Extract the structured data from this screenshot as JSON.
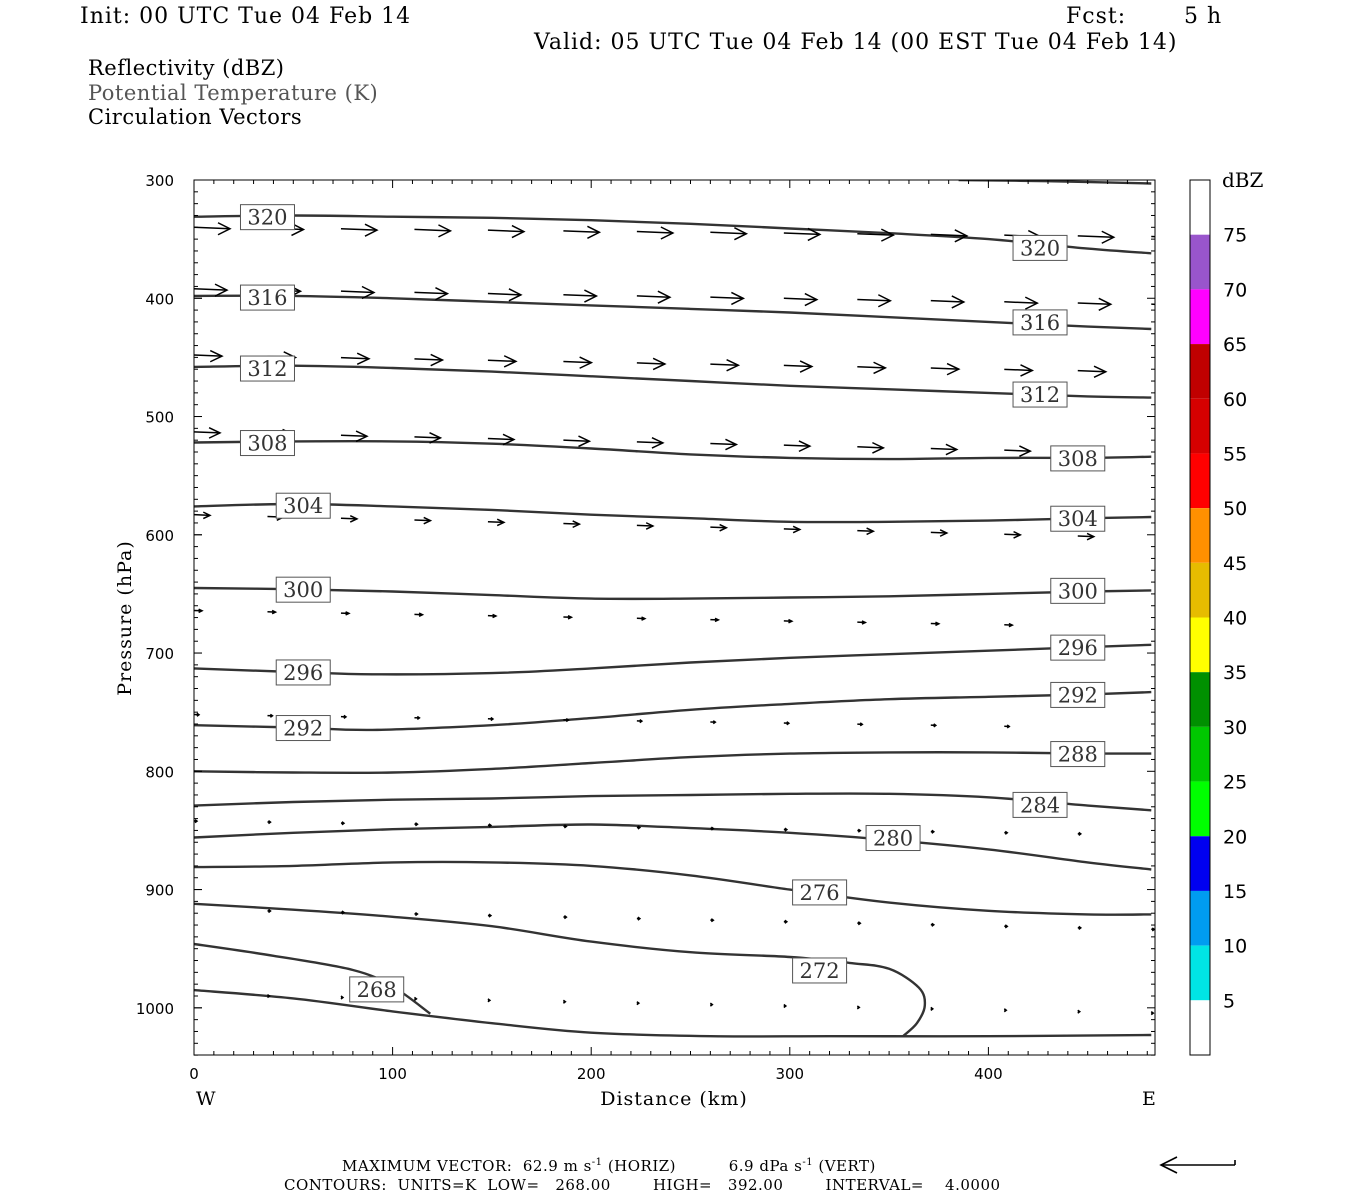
{
  "header": {
    "init": "Init: 00 UTC Tue 04 Feb 14",
    "fcst_label": "Fcst:",
    "fcst_value": "5 h",
    "valid": "Valid: 05 UTC Tue 04 Feb 14 (00 EST Tue 04 Feb 14)"
  },
  "fields": [
    "Reflectivity (dBZ)",
    "Potential Temperature (K)",
    "Circulation Vectors"
  ],
  "footer": {
    "max_vector_label": "MAXIMUM VECTOR:",
    "max_vector_horiz_value": "62.9",
    "max_vector_horiz_unit": "m s",
    "max_vector_horiz_exp": "-1",
    "max_vector_horiz_tag": "(HORIZ)",
    "max_vector_vert_value": "6.9",
    "max_vector_vert_unit": "dPa s",
    "max_vector_vert_exp": "-1",
    "max_vector_vert_tag": "(VERT)",
    "contours": "CONTOURS:  UNITS=K  LOW=   268.00        HIGH=   392.00        INTERVAL=    4.0000"
  },
  "chart_data": {
    "type": "cross-section",
    "xlabel": "Distance (km)",
    "ylabel": "Pressure (hPa)",
    "xlim": [
      0,
      482
    ],
    "ylim": [
      1040,
      300
    ],
    "x_ticks": [
      0,
      100,
      200,
      300,
      400
    ],
    "y_ticks": [
      300,
      400,
      500,
      600,
      700,
      800,
      900,
      1000
    ],
    "x_end_labels": {
      "left": "W",
      "right": "E"
    },
    "colorbar": {
      "title": "dBZ",
      "labels": [
        "5",
        "10",
        "15",
        "20",
        "25",
        "30",
        "35",
        "40",
        "45",
        "50",
        "55",
        "60",
        "65",
        "70",
        "75"
      ],
      "colors": [
        "#ffffff",
        "#00e4e4",
        "#009cf0",
        "#0000f0",
        "#00ff00",
        "#00c800",
        "#009000",
        "#ffff00",
        "#e6bc00",
        "#ff9000",
        "#ff0000",
        "#d60000",
        "#c00000",
        "#ff00ff",
        "#9955cc",
        "#ffffff"
      ]
    },
    "isentropes": [
      {
        "theta": 268,
        "points": [
          [
            0,
            985
          ],
          [
            50,
            992
          ],
          [
            100,
            1003
          ],
          [
            150,
            1013
          ],
          [
            200,
            1021
          ],
          [
            260,
            1024
          ],
          [
            320,
            1024
          ],
          [
            400,
            1024
          ],
          [
            482,
            1023
          ]
        ]
      },
      {
        "theta": 272,
        "points": [
          [
            0,
            946
          ],
          [
            40,
            956
          ],
          [
            80,
            968
          ],
          [
            100,
            982
          ],
          [
            119,
            1005
          ]
        ]
      },
      {
        "theta": 272,
        "points": [
          [
            0,
            912
          ],
          [
            50,
            917
          ],
          [
            100,
            923
          ],
          [
            150,
            931
          ],
          [
            200,
            944
          ],
          [
            250,
            953
          ],
          [
            300,
            957
          ],
          [
            330,
            962
          ],
          [
            350,
            967
          ],
          [
            365,
            983
          ],
          [
            368,
            998
          ],
          [
            364,
            1013
          ],
          [
            357,
            1024
          ]
        ]
      },
      {
        "theta": 276,
        "points": [
          [
            0,
            881
          ],
          [
            50,
            880
          ],
          [
            100,
            877
          ],
          [
            150,
            877
          ],
          [
            200,
            880
          ],
          [
            250,
            888
          ],
          [
            300,
            900
          ],
          [
            350,
            911
          ],
          [
            400,
            918
          ],
          [
            450,
            921
          ],
          [
            482,
            921
          ]
        ]
      },
      {
        "theta": 280,
        "points": [
          [
            0,
            856
          ],
          [
            50,
            852
          ],
          [
            100,
            849
          ],
          [
            150,
            847
          ],
          [
            200,
            845
          ],
          [
            250,
            848
          ],
          [
            300,
            852
          ],
          [
            350,
            858
          ],
          [
            400,
            866
          ],
          [
            450,
            877
          ],
          [
            482,
            883
          ]
        ]
      },
      {
        "theta": 284,
        "points": [
          [
            0,
            829
          ],
          [
            50,
            826
          ],
          [
            100,
            824
          ],
          [
            150,
            823
          ],
          [
            200,
            821
          ],
          [
            250,
            820
          ],
          [
            300,
            819
          ],
          [
            350,
            819
          ],
          [
            400,
            822
          ],
          [
            450,
            829
          ],
          [
            482,
            833
          ]
        ]
      },
      {
        "theta": 288,
        "points": [
          [
            0,
            800
          ],
          [
            50,
            801
          ],
          [
            100,
            801
          ],
          [
            150,
            798
          ],
          [
            200,
            793
          ],
          [
            250,
            788
          ],
          [
            300,
            785
          ],
          [
            350,
            784
          ],
          [
            400,
            784
          ],
          [
            450,
            785
          ],
          [
            482,
            785
          ]
        ]
      },
      {
        "theta": 292,
        "points": [
          [
            0,
            761
          ],
          [
            50,
            763
          ],
          [
            90,
            765
          ],
          [
            150,
            761
          ],
          [
            200,
            755
          ],
          [
            250,
            748
          ],
          [
            300,
            743
          ],
          [
            350,
            739
          ],
          [
            400,
            737
          ],
          [
            450,
            735
          ],
          [
            482,
            733
          ]
        ]
      },
      {
        "theta": 296,
        "points": [
          [
            0,
            713
          ],
          [
            50,
            716
          ],
          [
            90,
            718
          ],
          [
            150,
            717
          ],
          [
            200,
            713
          ],
          [
            250,
            708
          ],
          [
            300,
            704
          ],
          [
            350,
            701
          ],
          [
            400,
            698
          ],
          [
            450,
            695
          ],
          [
            482,
            693
          ]
        ]
      },
      {
        "theta": 300,
        "points": [
          [
            0,
            645
          ],
          [
            50,
            646
          ],
          [
            100,
            648
          ],
          [
            150,
            651
          ],
          [
            200,
            654
          ],
          [
            250,
            654
          ],
          [
            300,
            653
          ],
          [
            350,
            652
          ],
          [
            400,
            650
          ],
          [
            450,
            648
          ],
          [
            482,
            647
          ]
        ]
      },
      {
        "theta": 304,
        "points": [
          [
            0,
            576
          ],
          [
            50,
            574
          ],
          [
            100,
            576
          ],
          [
            150,
            579
          ],
          [
            200,
            583
          ],
          [
            250,
            586
          ],
          [
            300,
            589
          ],
          [
            350,
            589
          ],
          [
            400,
            588
          ],
          [
            450,
            586
          ],
          [
            482,
            585
          ]
        ]
      },
      {
        "theta": 308,
        "points": [
          [
            0,
            522
          ],
          [
            50,
            521
          ],
          [
            100,
            521
          ],
          [
            150,
            523
          ],
          [
            200,
            527
          ],
          [
            250,
            532
          ],
          [
            300,
            535
          ],
          [
            350,
            536
          ],
          [
            400,
            535
          ],
          [
            450,
            535
          ],
          [
            482,
            534
          ]
        ]
      },
      {
        "theta": 312,
        "points": [
          [
            0,
            458
          ],
          [
            50,
            457
          ],
          [
            100,
            459
          ],
          [
            150,
            462
          ],
          [
            200,
            466
          ],
          [
            250,
            470
          ],
          [
            300,
            474
          ],
          [
            350,
            477
          ],
          [
            400,
            480
          ],
          [
            450,
            483
          ],
          [
            482,
            484
          ]
        ]
      },
      {
        "theta": 316,
        "points": [
          [
            0,
            398
          ],
          [
            50,
            398
          ],
          [
            100,
            400
          ],
          [
            150,
            403
          ],
          [
            200,
            406
          ],
          [
            250,
            409
          ],
          [
            300,
            412
          ],
          [
            350,
            416
          ],
          [
            400,
            420
          ],
          [
            450,
            424
          ],
          [
            482,
            426
          ]
        ]
      },
      {
        "theta": 320,
        "points": [
          [
            0,
            331
          ],
          [
            50,
            330
          ],
          [
            100,
            331
          ],
          [
            150,
            332
          ],
          [
            200,
            334
          ],
          [
            250,
            337
          ],
          [
            300,
            341
          ],
          [
            350,
            345
          ],
          [
            400,
            350
          ],
          [
            450,
            358
          ],
          [
            482,
            362
          ]
        ]
      },
      {
        "theta": 324,
        "points": [
          [
            385,
            300
          ],
          [
            430,
            301
          ],
          [
            482,
            303
          ]
        ]
      }
    ],
    "contour_labels": [
      {
        "text": "320",
        "x": 37,
        "p": 331
      },
      {
        "text": "320",
        "x": 426,
        "p": 357
      },
      {
        "text": "316",
        "x": 37,
        "p": 399
      },
      {
        "text": "316",
        "x": 426,
        "p": 420
      },
      {
        "text": "312",
        "x": 37,
        "p": 459
      },
      {
        "text": "312",
        "x": 426,
        "p": 481
      },
      {
        "text": "308",
        "x": 37,
        "p": 522
      },
      {
        "text": "308",
        "x": 445,
        "p": 535
      },
      {
        "text": "304",
        "x": 55,
        "p": 575
      },
      {
        "text": "304",
        "x": 445,
        "p": 586
      },
      {
        "text": "300",
        "x": 55,
        "p": 646
      },
      {
        "text": "300",
        "x": 445,
        "p": 647
      },
      {
        "text": "296",
        "x": 55,
        "p": 716
      },
      {
        "text": "296",
        "x": 445,
        "p": 695
      },
      {
        "text": "292",
        "x": 55,
        "p": 763
      },
      {
        "text": "292",
        "x": 445,
        "p": 735
      },
      {
        "text": "288",
        "x": 445,
        "p": 785
      },
      {
        "text": "284",
        "x": 426,
        "p": 828
      },
      {
        "text": "280",
        "x": 352,
        "p": 856
      },
      {
        "text": "276",
        "x": 315,
        "p": 902
      },
      {
        "text": "272",
        "x": 315,
        "p": 968
      },
      {
        "text": "268",
        "x": 92,
        "p": 984
      }
    ],
    "vector_rows": [
      {
        "p": 340,
        "x": [
          0,
          37,
          74,
          111,
          148,
          186,
          223,
          260,
          297,
          334,
          371,
          408,
          445,
          482
        ],
        "len": 36,
        "dp": 0.6
      },
      {
        "p": 392,
        "x": [
          0,
          37,
          74,
          111,
          148,
          186,
          223,
          260,
          297,
          334,
          371,
          408,
          445,
          482
        ],
        "len": 33,
        "dp": 1.0
      },
      {
        "p": 448,
        "x": [
          0,
          37,
          74,
          111,
          148,
          186,
          223,
          260,
          297,
          334,
          371,
          408,
          445
        ],
        "len": 28,
        "dp": 1.1
      },
      {
        "p": 513,
        "x": [
          0,
          37,
          74,
          111,
          148,
          186,
          223,
          260,
          297,
          334,
          371,
          408,
          445
        ],
        "len": 26,
        "dp": 1.4
      },
      {
        "p": 583,
        "x": [
          0,
          37,
          74,
          111,
          148,
          186,
          223,
          260,
          297,
          334,
          371,
          408,
          445
        ],
        "len": 16,
        "dp": 1.5
      },
      {
        "p": 664,
        "x": [
          0,
          37,
          74,
          111,
          148,
          186,
          223,
          260,
          297,
          334,
          371,
          408
        ],
        "len": 8,
        "dp": 1.1
      },
      {
        "p": 752,
        "x": [
          0,
          37,
          74,
          111,
          148,
          186,
          223,
          260,
          297,
          334,
          371,
          408
        ],
        "len": 5,
        "dp": 0.9
      },
      {
        "p": 842,
        "x": [
          0,
          37,
          74,
          111,
          148,
          186,
          223,
          260,
          297,
          334,
          371,
          408,
          445
        ],
        "len": 3,
        "dp": 0.9
      },
      {
        "p": 918,
        "x": [
          37,
          74,
          111,
          148,
          186,
          223,
          260,
          297,
          334,
          371,
          408,
          445,
          482
        ],
        "len": 3,
        "dp": 1.3
      },
      {
        "p": 990,
        "x": [
          37,
          74,
          111,
          148,
          186,
          223,
          260,
          297,
          334,
          371,
          408,
          445,
          482
        ],
        "len": 2,
        "dp": 1.2
      }
    ],
    "reference_vector": "left-pointing arrow"
  }
}
